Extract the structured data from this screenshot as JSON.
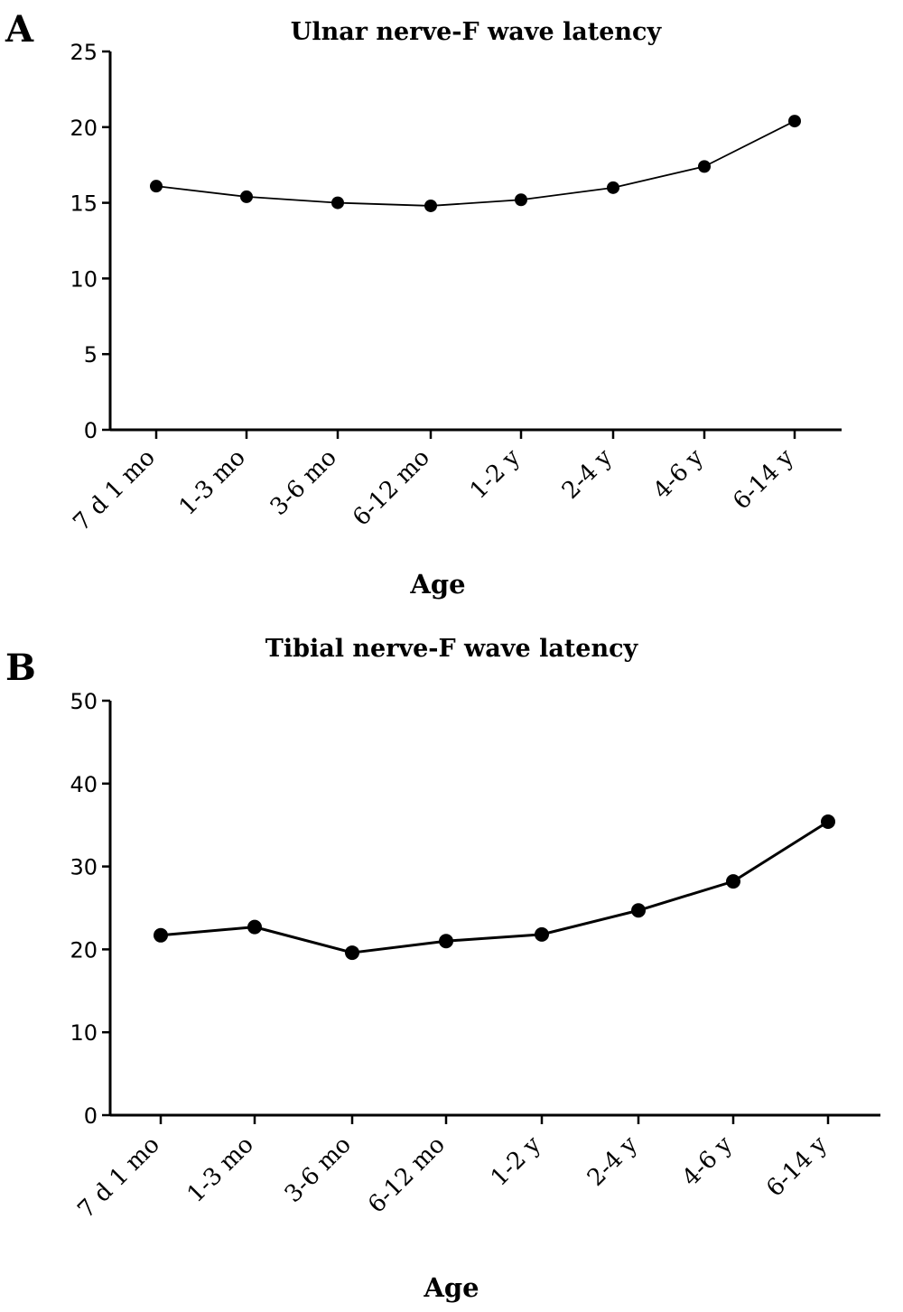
{
  "chart_data": [
    {
      "panel": "A",
      "type": "line",
      "title": "Ulnar nerve-F wave latency",
      "xlabel": "Age",
      "ylabel": "",
      "categories": [
        "7 d 1 mo",
        "1-3 mo",
        "3-6 mo",
        "6-12 mo",
        "1-2 y",
        "2-4 y",
        "4-6 y",
        "6-14 y"
      ],
      "series": [
        {
          "values": [
            16.1,
            15.4,
            15.0,
            14.8,
            15.2,
            16.0,
            17.4,
            20.4
          ]
        }
      ],
      "ylim": [
        0,
        25
      ],
      "yticks": [
        0,
        5,
        10,
        15,
        20,
        25
      ],
      "grid": false,
      "legend": "none"
    },
    {
      "panel": "B",
      "type": "line",
      "title": "Tibial nerve-F wave latency",
      "xlabel": "Age",
      "ylabel": "",
      "categories": [
        "7 d 1 mo",
        "1-3 mo",
        "3-6 mo",
        "6-12 mo",
        "1-2 y",
        "2-4 y",
        "4-6 y",
        "6-14 y"
      ],
      "series": [
        {
          "values": [
            21.7,
            22.7,
            19.6,
            21.0,
            21.8,
            24.7,
            28.2,
            35.4
          ]
        }
      ],
      "ylim": [
        0,
        50
      ],
      "yticks": [
        0,
        10,
        20,
        30,
        40,
        50
      ],
      "grid": false,
      "legend": "none"
    }
  ]
}
